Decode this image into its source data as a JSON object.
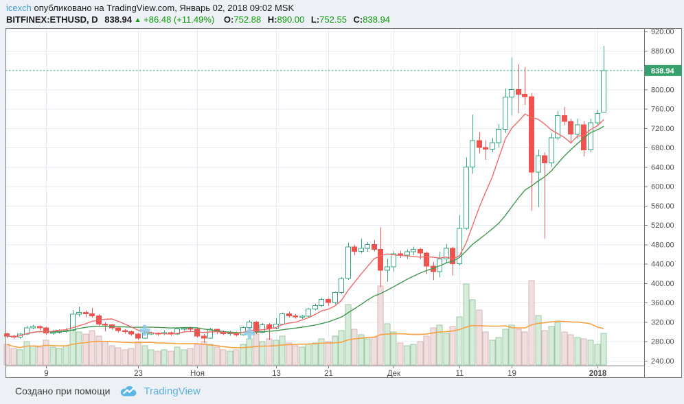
{
  "header": {
    "author": "icexch",
    "published": "опубликовано на TradingView.com, Январь 02, 2018 09:02 MSK",
    "symbol": "BITFINEX:ETHUSD, D",
    "last_price": "838.94",
    "up_triangle": "▲",
    "change": "+86.48 (+11.49%)",
    "o_label": "O:",
    "o_value": "752.88",
    "h_label": "H:",
    "h_value": "890.00",
    "l_label": "L:",
    "l_value": "752.55",
    "c_label": "C:",
    "c_value": "838.94"
  },
  "footer": {
    "created_with": "Создано при помощи",
    "brand": "TradingView"
  },
  "colors": {
    "page_bg": "#edf0f5",
    "chart_bg": "#ffffff",
    "frame": "#777777",
    "grid": "#e4ebf3",
    "axis_text": "#4c4c4c",
    "up": "#35a77e",
    "down": "#ef5350",
    "ma_fast": "#f06a6a",
    "ma_slow": "#42984f",
    "volume_ma": "#f7a143",
    "vol_up_fill": "#d7ebda",
    "vol_up_stroke": "#9ccaa4",
    "vol_down_fill": "#efdfdf",
    "vol_down_stroke": "#d9b6b8",
    "last_price_bg": "#37a16d",
    "last_price_text": "#ffffff",
    "last_price_line": "#33a06e",
    "marker_blue": "#8ecbe8",
    "link_blue": "#42a0dc",
    "value_green": "#0b9c0b",
    "brand_blue": "#59b1e0"
  },
  "chart_data": {
    "type": "candlestick+volume",
    "title": "BITFINEX:ETHUSD, D",
    "exchange": "BITFINEX",
    "pair": "ETHUSD",
    "timeframe": "D",
    "legend_note": "red = fast MA(7) of close, green = slow MA(20) of close, orange = MA(20) of volume",
    "grid": true,
    "last_price": 838.94,
    "y_axis": {
      "side": "right",
      "min": 240,
      "max": 929,
      "ticks": [
        920,
        880,
        800,
        760,
        720,
        680,
        640,
        600,
        560,
        520,
        480,
        440,
        400,
        360,
        320,
        280,
        240
      ]
    },
    "x_labels": [
      {
        "label": "9",
        "i": 6,
        "bold": false
      },
      {
        "label": "23",
        "i": 20,
        "bold": false
      },
      {
        "label": "Ноя",
        "i": 29,
        "bold": false
      },
      {
        "label": "13",
        "i": 41,
        "bold": false
      },
      {
        "label": "21",
        "i": 49,
        "bold": false
      },
      {
        "label": "Дек",
        "i": 59,
        "bold": false
      },
      {
        "label": "11",
        "i": 69,
        "bold": false
      },
      {
        "label": "19",
        "i": 77,
        "bold": false
      },
      {
        "label": "2018",
        "i": 90,
        "bold": true
      }
    ],
    "note_markers": [
      {
        "i": 21,
        "price": 303
      },
      {
        "i": 37,
        "price": 297
      }
    ],
    "ma_fast_period": 7,
    "ma_slow_period": 20,
    "volume_ma_period": 20,
    "volume_unit": "relative",
    "candles_format": [
      "date",
      "open",
      "high",
      "low",
      "close",
      "volume"
    ],
    "candles": [
      [
        "2017-10-03",
        296,
        298,
        287,
        291,
        30
      ],
      [
        "2017-10-04",
        291,
        294,
        285,
        289,
        24
      ],
      [
        "2017-10-05",
        289,
        297,
        286,
        295,
        22
      ],
      [
        "2017-10-06",
        295,
        312,
        293,
        308,
        34
      ],
      [
        "2017-10-07",
        308,
        314,
        305,
        311,
        28
      ],
      [
        "2017-10-08",
        311,
        313,
        303,
        308,
        26
      ],
      [
        "2017-10-09",
        308,
        310,
        294,
        297,
        36
      ],
      [
        "2017-10-10",
        297,
        304,
        294,
        299,
        26
      ],
      [
        "2017-10-11",
        299,
        305,
        296,
        303,
        24
      ],
      [
        "2017-10-12",
        303,
        307,
        298,
        303,
        28
      ],
      [
        "2017-10-13",
        303,
        345,
        301,
        336,
        52
      ],
      [
        "2017-10-14",
        336,
        352,
        331,
        340,
        48
      ],
      [
        "2017-10-15",
        340,
        344,
        330,
        337,
        45
      ],
      [
        "2017-10-16",
        337,
        349,
        329,
        333,
        50
      ],
      [
        "2017-10-17",
        333,
        336,
        312,
        316,
        42
      ],
      [
        "2017-10-18",
        316,
        319,
        301,
        314,
        34
      ],
      [
        "2017-10-19",
        314,
        316,
        304,
        308,
        28
      ],
      [
        "2017-10-20",
        308,
        310,
        299,
        302,
        25
      ],
      [
        "2017-10-21",
        302,
        305,
        296,
        300,
        22
      ],
      [
        "2017-10-22",
        300,
        302,
        292,
        295,
        24
      ],
      [
        "2017-10-23",
        295,
        297,
        284,
        287,
        34
      ],
      [
        "2017-10-24",
        287,
        299,
        285,
        297,
        28
      ],
      [
        "2017-10-25",
        297,
        300,
        293,
        297,
        22
      ],
      [
        "2017-10-26",
        297,
        299,
        292,
        296,
        20
      ],
      [
        "2017-10-27",
        296,
        303,
        293,
        298,
        22
      ],
      [
        "2017-10-28",
        298,
        300,
        292,
        295,
        20
      ],
      [
        "2017-10-29",
        295,
        308,
        293,
        306,
        26
      ],
      [
        "2017-10-30",
        306,
        309,
        302,
        307,
        22
      ],
      [
        "2017-10-31",
        307,
        310,
        300,
        305,
        24
      ],
      [
        "2017-11-01",
        305,
        307,
        288,
        291,
        30
      ],
      [
        "2017-11-02",
        291,
        295,
        277,
        287,
        34
      ],
      [
        "2017-11-03",
        287,
        308,
        285,
        305,
        30
      ],
      [
        "2017-11-04",
        305,
        306,
        295,
        300,
        26
      ],
      [
        "2017-11-05",
        300,
        302,
        293,
        296,
        22
      ],
      [
        "2017-11-06",
        296,
        302,
        292,
        298,
        20
      ],
      [
        "2017-11-07",
        298,
        300,
        290,
        294,
        22
      ],
      [
        "2017-11-08",
        294,
        311,
        292,
        309,
        30
      ],
      [
        "2017-11-09",
        309,
        324,
        306,
        320,
        38
      ],
      [
        "2017-11-10",
        320,
        322,
        295,
        299,
        45
      ],
      [
        "2017-11-11",
        299,
        318,
        297,
        314,
        34
      ],
      [
        "2017-11-12",
        314,
        318,
        283,
        307,
        38
      ],
      [
        "2017-11-13",
        307,
        328,
        305,
        316,
        36
      ],
      [
        "2017-11-14",
        316,
        340,
        314,
        337,
        42
      ],
      [
        "2017-11-15",
        337,
        341,
        329,
        333,
        32
      ],
      [
        "2017-11-16",
        333,
        336,
        327,
        331,
        28
      ],
      [
        "2017-11-17",
        331,
        335,
        326,
        332,
        26
      ],
      [
        "2017-11-18",
        332,
        349,
        330,
        347,
        30
      ],
      [
        "2017-11-19",
        347,
        358,
        344,
        354,
        32
      ],
      [
        "2017-11-20",
        354,
        370,
        351,
        367,
        38
      ],
      [
        "2017-11-21",
        367,
        369,
        354,
        360,
        34
      ],
      [
        "2017-11-22",
        360,
        383,
        357,
        381,
        42
      ],
      [
        "2017-11-23",
        381,
        413,
        378,
        410,
        50
      ],
      [
        "2017-11-24",
        410,
        484,
        407,
        475,
        88
      ],
      [
        "2017-11-25",
        475,
        479,
        458,
        466,
        52
      ],
      [
        "2017-11-26",
        466,
        492,
        462,
        472,
        44
      ],
      [
        "2017-11-27",
        472,
        485,
        465,
        480,
        38
      ],
      [
        "2017-11-28",
        480,
        489,
        466,
        470,
        40
      ],
      [
        "2017-11-29",
        470,
        515,
        392,
        427,
        115
      ],
      [
        "2017-11-30",
        427,
        451,
        403,
        434,
        60
      ],
      [
        "2017-12-01",
        434,
        466,
        424,
        461,
        48
      ],
      [
        "2017-12-02",
        461,
        467,
        452,
        458,
        32
      ],
      [
        "2017-12-03",
        458,
        470,
        450,
        465,
        28
      ],
      [
        "2017-12-04",
        465,
        476,
        458,
        470,
        30
      ],
      [
        "2017-12-05",
        470,
        473,
        450,
        462,
        34
      ],
      [
        "2017-12-06",
        462,
        465,
        419,
        435,
        42
      ],
      [
        "2017-12-07",
        435,
        444,
        406,
        424,
        54
      ],
      [
        "2017-12-08",
        424,
        465,
        412,
        450,
        58
      ],
      [
        "2017-12-09",
        450,
        481,
        443,
        472,
        46
      ],
      [
        "2017-12-10",
        472,
        476,
        416,
        440,
        56
      ],
      [
        "2017-12-11",
        440,
        541,
        437,
        513,
        70
      ],
      [
        "2017-12-12",
        513,
        660,
        510,
        640,
        118
      ],
      [
        "2017-12-13",
        640,
        748,
        626,
        694,
        95
      ],
      [
        "2017-12-14",
        694,
        712,
        668,
        680,
        80
      ],
      [
        "2017-12-15",
        680,
        695,
        655,
        677,
        48
      ],
      [
        "2017-12-16",
        677,
        700,
        670,
        690,
        36
      ],
      [
        "2017-12-17",
        690,
        728,
        680,
        718,
        40
      ],
      [
        "2017-12-18",
        718,
        802,
        710,
        784,
        52
      ],
      [
        "2017-12-19",
        784,
        866,
        746,
        800,
        58
      ],
      [
        "2017-12-20",
        800,
        852,
        751,
        790,
        52
      ],
      [
        "2017-12-21",
        790,
        846,
        768,
        785,
        48
      ],
      [
        "2017-12-22",
        785,
        793,
        549,
        629,
        123
      ],
      [
        "2017-12-23",
        629,
        676,
        557,
        663,
        72
      ],
      [
        "2017-12-24",
        663,
        670,
        492,
        648,
        50
      ],
      [
        "2017-12-25",
        648,
        710,
        640,
        700,
        56
      ],
      [
        "2017-12-26",
        700,
        756,
        695,
        746,
        62
      ],
      [
        "2017-12-27",
        746,
        764,
        726,
        734,
        48
      ],
      [
        "2017-12-28",
        734,
        740,
        688,
        708,
        44
      ],
      [
        "2017-12-29",
        708,
        740,
        698,
        727,
        40
      ],
      [
        "2017-12-30",
        727,
        735,
        662,
        675,
        38
      ],
      [
        "2017-12-31",
        675,
        740,
        670,
        731,
        36
      ],
      [
        "2018-01-01",
        731,
        758,
        726,
        750,
        30
      ],
      [
        "2018-01-02",
        752.88,
        890,
        752.55,
        838.94,
        46
      ]
    ]
  }
}
